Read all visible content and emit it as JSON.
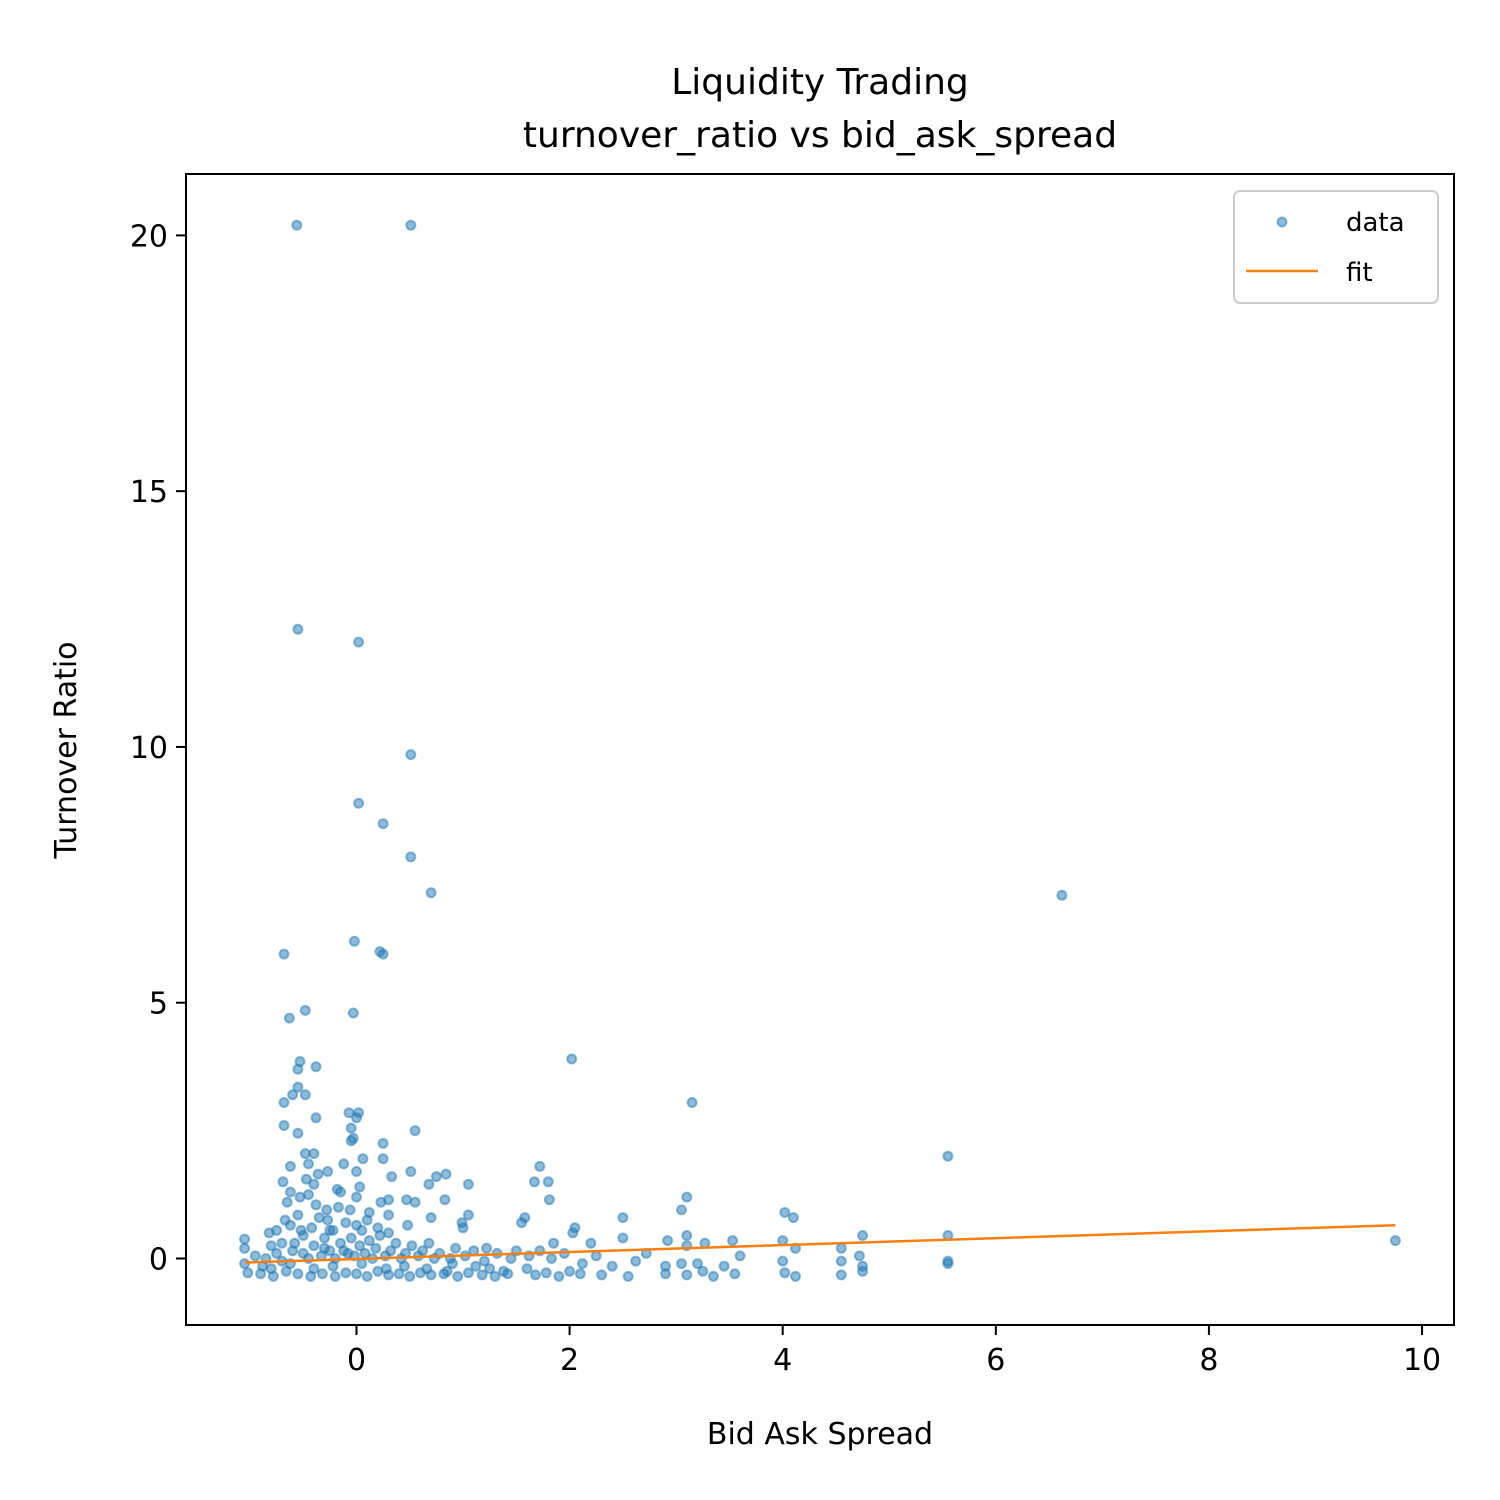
{
  "chart_data": {
    "type": "scatter",
    "title": "Liquidity Trading",
    "subtitle": "turnover_ratio vs bid_ask_spread",
    "xlabel": "Bid Ask Spread",
    "ylabel": "Turnover Ratio",
    "xlim": [
      -1.6,
      10.3
    ],
    "ylim": [
      -1.3,
      21.2
    ],
    "x_ticks": [
      0,
      2,
      4,
      6,
      8,
      10
    ],
    "x_tick_labels": [
      "0",
      "2",
      "4",
      "6",
      "8",
      "10"
    ],
    "y_ticks": [
      0,
      5,
      10,
      15,
      20
    ],
    "y_tick_labels": [
      "0",
      "5",
      "10",
      "15",
      "20"
    ],
    "grid": false,
    "legend": {
      "placement": "top-right",
      "entries": [
        "data",
        "fit"
      ]
    },
    "colors": {
      "data": "#1f77b4",
      "fit": "#ff7f0e"
    },
    "series": [
      {
        "name": "data",
        "kind": "scatter",
        "points": [
          [
            -0.56,
            20.2
          ],
          [
            0.51,
            20.2
          ],
          [
            -0.55,
            12.3
          ],
          [
            0.02,
            12.05
          ],
          [
            0.51,
            9.85
          ],
          [
            0.02,
            8.9
          ],
          [
            0.25,
            8.5
          ],
          [
            0.51,
            7.85
          ],
          [
            0.7,
            7.15
          ],
          [
            6.62,
            7.1
          ],
          [
            -0.02,
            6.2
          ],
          [
            0.22,
            6.0
          ],
          [
            0.25,
            5.95
          ],
          [
            -0.68,
            5.95
          ],
          [
            -0.48,
            4.85
          ],
          [
            -0.63,
            4.7
          ],
          [
            -0.03,
            4.8
          ],
          [
            2.02,
            3.9
          ],
          [
            -0.53,
            3.85
          ],
          [
            -0.38,
            3.75
          ],
          [
            -0.55,
            3.7
          ],
          [
            -0.55,
            3.35
          ],
          [
            -0.6,
            3.2
          ],
          [
            -0.48,
            3.2
          ],
          [
            -0.68,
            3.05
          ],
          [
            3.15,
            3.05
          ],
          [
            0.02,
            2.85
          ],
          [
            -0.07,
            2.85
          ],
          [
            0.0,
            2.75
          ],
          [
            -0.38,
            2.75
          ],
          [
            -0.68,
            2.6
          ],
          [
            -0.05,
            2.55
          ],
          [
            0.55,
            2.5
          ],
          [
            -0.55,
            2.45
          ],
          [
            -0.05,
            2.3
          ],
          [
            0.25,
            2.25
          ],
          [
            -0.03,
            2.35
          ],
          [
            -0.48,
            2.05
          ],
          [
            -0.4,
            2.05
          ],
          [
            5.55,
            2.0
          ],
          [
            0.25,
            1.95
          ],
          [
            0.06,
            1.95
          ],
          [
            -0.45,
            1.85
          ],
          [
            -0.12,
            1.85
          ],
          [
            -0.62,
            1.8
          ],
          [
            1.72,
            1.8
          ],
          [
            0.0,
            1.7
          ],
          [
            0.51,
            1.7
          ],
          [
            -0.36,
            1.65
          ],
          [
            -0.27,
            1.7
          ],
          [
            0.84,
            1.65
          ],
          [
            0.75,
            1.6
          ],
          [
            0.33,
            1.6
          ],
          [
            -0.47,
            1.55
          ],
          [
            -0.69,
            1.5
          ],
          [
            1.67,
            1.5
          ],
          [
            1.8,
            1.5
          ],
          [
            0.68,
            1.45
          ],
          [
            1.05,
            1.45
          ],
          [
            0.03,
            1.4
          ],
          [
            -0.4,
            1.45
          ],
          [
            -0.18,
            1.35
          ],
          [
            0.3,
            1.15
          ],
          [
            0.47,
            1.15
          ],
          [
            0.0,
            1.2
          ],
          [
            3.1,
            1.2
          ],
          [
            1.81,
            1.15
          ],
          [
            0.83,
            1.15
          ],
          [
            0.23,
            1.1
          ],
          [
            0.55,
            1.1
          ],
          [
            -0.53,
            1.2
          ],
          [
            -0.62,
            1.3
          ],
          [
            3.05,
            0.95
          ],
          [
            0.12,
            0.9
          ],
          [
            4.02,
            0.9
          ],
          [
            0.3,
            0.85
          ],
          [
            4.1,
            0.8
          ],
          [
            1.58,
            0.8
          ],
          [
            1.05,
            0.85
          ],
          [
            2.5,
            0.8
          ],
          [
            -0.67,
            0.75
          ],
          [
            0.7,
            0.8
          ],
          [
            1.55,
            0.7
          ],
          [
            0.99,
            0.7
          ],
          [
            0.0,
            0.65
          ],
          [
            2.05,
            0.6
          ],
          [
            2.03,
            0.5
          ],
          [
            -0.82,
            0.5
          ],
          [
            1.0,
            0.6
          ],
          [
            0.48,
            0.65
          ],
          [
            3.1,
            0.45
          ],
          [
            4.75,
            0.45
          ],
          [
            5.55,
            0.45
          ],
          [
            0.3,
            0.5
          ],
          [
            -0.25,
            0.55
          ],
          [
            -1.05,
            0.38
          ],
          [
            2.5,
            0.4
          ],
          [
            3.53,
            0.35
          ],
          [
            2.92,
            0.35
          ],
          [
            4.0,
            0.35
          ],
          [
            2.2,
            0.3
          ],
          [
            3.27,
            0.3
          ],
          [
            1.85,
            0.3
          ],
          [
            3.1,
            0.25
          ],
          [
            4.55,
            0.2
          ],
          [
            4.12,
            0.2
          ],
          [
            9.75,
            0.35
          ],
          [
            -1.05,
            0.2
          ],
          [
            -0.8,
            0.25
          ],
          [
            1.22,
            0.2
          ],
          [
            2.72,
            0.1
          ],
          [
            1.5,
            0.15
          ],
          [
            3.6,
            0.05
          ],
          [
            4.72,
            0.05
          ],
          [
            5.55,
            -0.05
          ],
          [
            4.55,
            -0.05
          ],
          [
            3.05,
            -0.1
          ],
          [
            5.55,
            -0.1
          ],
          [
            2.9,
            -0.15
          ],
          [
            0.9,
            -0.1
          ],
          [
            1.25,
            -0.2
          ],
          [
            2.0,
            -0.25
          ],
          [
            3.25,
            -0.25
          ],
          [
            4.75,
            -0.15
          ],
          [
            4.75,
            -0.25
          ],
          [
            -1.05,
            -0.1
          ],
          [
            -1.02,
            -0.28
          ],
          [
            -0.9,
            -0.3
          ],
          [
            -0.78,
            -0.35
          ],
          [
            -0.66,
            -0.25
          ],
          [
            -0.55,
            -0.3
          ],
          [
            -0.43,
            -0.35
          ],
          [
            -0.32,
            -0.3
          ],
          [
            -0.2,
            -0.35
          ],
          [
            -0.1,
            -0.28
          ],
          [
            0.0,
            -0.3
          ],
          [
            0.1,
            -0.35
          ],
          [
            0.2,
            -0.25
          ],
          [
            0.3,
            -0.32
          ],
          [
            0.4,
            -0.3
          ],
          [
            0.5,
            -0.35
          ],
          [
            0.6,
            -0.28
          ],
          [
            0.7,
            -0.32
          ],
          [
            0.82,
            -0.3
          ],
          [
            0.95,
            -0.35
          ],
          [
            1.05,
            -0.28
          ],
          [
            1.18,
            -0.32
          ],
          [
            1.3,
            -0.35
          ],
          [
            1.42,
            -0.3
          ],
          [
            1.68,
            -0.32
          ],
          [
            1.78,
            -0.28
          ],
          [
            1.9,
            -0.35
          ],
          [
            2.1,
            -0.3
          ],
          [
            2.3,
            -0.32
          ],
          [
            2.55,
            -0.35
          ],
          [
            2.9,
            -0.3
          ],
          [
            3.1,
            -0.32
          ],
          [
            3.35,
            -0.35
          ],
          [
            3.55,
            -0.3
          ],
          [
            4.02,
            -0.28
          ],
          [
            4.12,
            -0.35
          ],
          [
            4.55,
            -0.32
          ],
          [
            -0.95,
            0.05
          ],
          [
            -0.85,
            0.0
          ],
          [
            -0.75,
            0.1
          ],
          [
            -0.7,
            -0.05
          ],
          [
            -0.6,
            0.15
          ],
          [
            -0.58,
            0.3
          ],
          [
            -0.5,
            0.1
          ],
          [
            -0.5,
            0.45
          ],
          [
            -0.45,
            0.0
          ],
          [
            -0.42,
            0.6
          ],
          [
            -0.4,
            0.25
          ],
          [
            -0.35,
            0.8
          ],
          [
            -0.33,
            0.05
          ],
          [
            -0.3,
            0.4
          ],
          [
            -0.28,
            0.95
          ],
          [
            -0.25,
            0.15
          ],
          [
            -0.22,
            0.55
          ],
          [
            -0.2,
            0.0
          ],
          [
            -0.17,
            1.0
          ],
          [
            -0.15,
            0.3
          ],
          [
            -0.1,
            0.7
          ],
          [
            -0.08,
            0.1
          ],
          [
            -0.05,
            0.4
          ],
          [
            -0.02,
            0.05
          ],
          [
            0.03,
            0.25
          ],
          [
            0.05,
            0.55
          ],
          [
            0.08,
            0.1
          ],
          [
            0.12,
            0.35
          ],
          [
            0.15,
            0.0
          ],
          [
            0.18,
            0.2
          ],
          [
            0.22,
            0.45
          ],
          [
            0.27,
            0.05
          ],
          [
            0.32,
            0.15
          ],
          [
            0.37,
            0.3
          ],
          [
            0.42,
            0.0
          ],
          [
            0.46,
            0.1
          ],
          [
            0.52,
            0.25
          ],
          [
            0.58,
            0.05
          ],
          [
            0.62,
            0.15
          ],
          [
            0.68,
            0.3
          ],
          [
            0.73,
            0.0
          ],
          [
            0.78,
            0.1
          ],
          [
            0.88,
            0.0
          ],
          [
            0.93,
            0.2
          ],
          [
            1.02,
            0.05
          ],
          [
            1.1,
            0.15
          ],
          [
            1.2,
            -0.05
          ],
          [
            1.32,
            0.1
          ],
          [
            1.45,
            0.0
          ],
          [
            1.62,
            0.05
          ],
          [
            1.72,
            0.15
          ],
          [
            1.83,
            0.0
          ],
          [
            1.95,
            0.1
          ],
          [
            2.12,
            -0.1
          ],
          [
            2.25,
            0.05
          ],
          [
            2.4,
            -0.15
          ],
          [
            2.62,
            -0.05
          ],
          [
            3.2,
            -0.1
          ],
          [
            3.45,
            -0.15
          ],
          [
            4.0,
            -0.05
          ],
          [
            -0.65,
            1.1
          ],
          [
            -0.55,
            0.85
          ],
          [
            -0.45,
            1.25
          ],
          [
            -0.38,
            1.05
          ],
          [
            -0.27,
            0.75
          ],
          [
            -0.15,
            1.3
          ],
          [
            -0.06,
            0.95
          ],
          [
            0.1,
            0.75
          ],
          [
            0.2,
            0.6
          ],
          [
            -0.75,
            0.55
          ],
          [
            -0.7,
            0.3
          ],
          [
            -0.62,
            0.65
          ],
          [
            -0.52,
            0.55
          ],
          [
            -0.3,
            0.2
          ],
          [
            -0.12,
            0.15
          ],
          [
            -0.88,
            -0.15
          ],
          [
            -0.8,
            -0.2
          ],
          [
            -0.62,
            -0.1
          ],
          [
            -0.4,
            -0.2
          ],
          [
            -0.22,
            -0.15
          ],
          [
            0.05,
            -0.1
          ],
          [
            0.28,
            -0.2
          ],
          [
            0.45,
            -0.15
          ],
          [
            0.66,
            -0.2
          ],
          [
            0.85,
            -0.25
          ],
          [
            1.12,
            -0.15
          ],
          [
            1.38,
            -0.25
          ],
          [
            1.6,
            -0.2
          ]
        ]
      },
      {
        "name": "fit",
        "kind": "line",
        "points": [
          [
            -1.05,
            -0.08
          ],
          [
            9.75,
            0.65
          ]
        ]
      }
    ]
  }
}
